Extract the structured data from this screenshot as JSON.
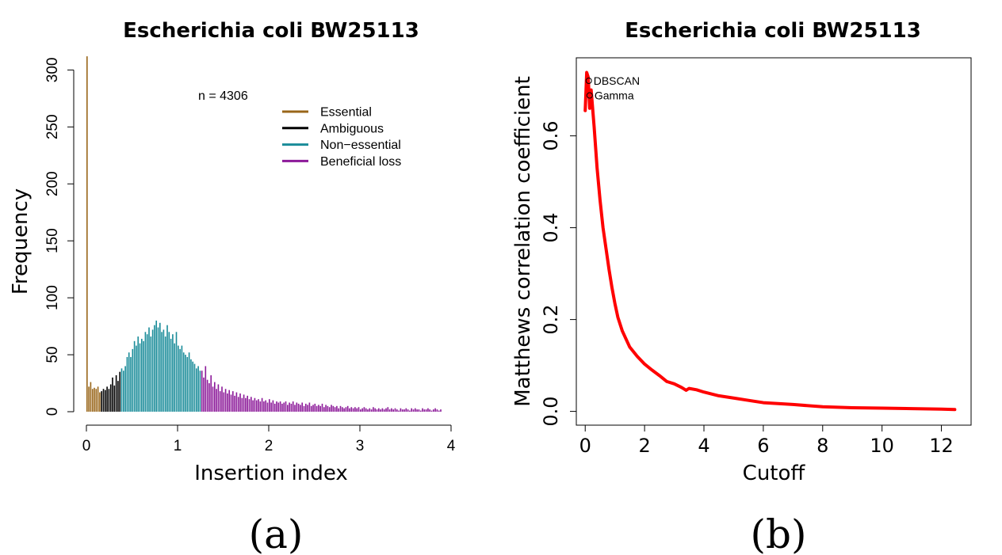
{
  "panels": {
    "a": {
      "label": "(a)",
      "chart_data": {
        "type": "bar",
        "title": "Escherichia coli BW25113",
        "xlabel": "Insertion index",
        "ylabel": "Frequency",
        "xlim": [
          0,
          4.2
        ],
        "ylim": [
          0,
          310
        ],
        "xticks": [
          "0",
          "1",
          "2",
          "3",
          "4"
        ],
        "yticks": [
          "0",
          "50",
          "100",
          "150",
          "200",
          "250",
          "300"
        ],
        "annotation": "n = 4306",
        "bin_width": 0.02,
        "legend": [
          {
            "name": "Essential",
            "color": "#99661a"
          },
          {
            "name": "Ambiguous",
            "color": "#000000"
          },
          {
            "name": "Non−essential",
            "color": "#1a8c99"
          },
          {
            "name": "Beneficial loss",
            "color": "#8c1a99"
          }
        ],
        "series": [
          {
            "name": "Essential",
            "color": "#99661a",
            "start": 0.0,
            "values": [
              312,
              22,
              26,
              20,
              21,
              20,
              22,
              17
            ]
          },
          {
            "name": "Ambiguous",
            "color": "#000000",
            "start": 0.16,
            "values": [
              18,
              20,
              19,
              22,
              20,
              24,
              30,
              23,
              32,
              27,
              35
            ]
          },
          {
            "name": "Non−essential",
            "color": "#1a8c99",
            "start": 0.38,
            "values": [
              38,
              36,
              40,
              48,
              52,
              48,
              55,
              62,
              58,
              66,
              60,
              64,
              62,
              70,
              68,
              74,
              66,
              72,
              76,
              80,
              74,
              78,
              70,
              72,
              66,
              76,
              70,
              64,
              68,
              60,
              70,
              58,
              55,
              58,
              52,
              50,
              48,
              52,
              46,
              44,
              42,
              38,
              40,
              36
            ]
          },
          {
            "name": "Beneficial loss",
            "color": "#8c1a99",
            "start": 1.26,
            "values": [
              36,
              30,
              40,
              28,
              25,
              32,
              22,
              26,
              20,
              24,
              18,
              22,
              17,
              20,
              16,
              19,
              15,
              18,
              14,
              17,
              13,
              16,
              12,
              15,
              12,
              14,
              11,
              13,
              10,
              12,
              10,
              11,
              9,
              12,
              9,
              10,
              8,
              11,
              8,
              10,
              7,
              9,
              8,
              9,
              7,
              8,
              9,
              6,
              8,
              7,
              9,
              6,
              8,
              7,
              6,
              8,
              5,
              7,
              6,
              8,
              5,
              6,
              7,
              5,
              6,
              5,
              7,
              4,
              6,
              5,
              4,
              6,
              5,
              4,
              5,
              3,
              5,
              4,
              3,
              4,
              5,
              3,
              4,
              3,
              4,
              3,
              4,
              2,
              3,
              4,
              3,
              2,
              3,
              2,
              4,
              3,
              2,
              3,
              2,
              3,
              2,
              3,
              4,
              2,
              3,
              2,
              3,
              2,
              1,
              3,
              2,
              2,
              3,
              2,
              1,
              3,
              2,
              3,
              2,
              2,
              1,
              3,
              2,
              2,
              3,
              2,
              1,
              2,
              3,
              2,
              1,
              2
            ]
          }
        ]
      }
    },
    "b": {
      "label": "(b)",
      "chart_data": {
        "type": "line",
        "title": "Escherichia coli BW25113",
        "xlabel": "Cutoff",
        "ylabel": "Matthews correlation coefficient",
        "xlim": [
          -0.3,
          13.0
        ],
        "ylim": [
          -0.03,
          0.77
        ],
        "xticks": [
          "0",
          "2",
          "4",
          "6",
          "8",
          "10",
          "12"
        ],
        "yticks": [
          "0.0",
          "0.2",
          "0.4",
          "0.6"
        ],
        "line_color": "#ff0000",
        "x": [
          0.0,
          0.05,
          0.1,
          0.15,
          0.2,
          0.3,
          0.4,
          0.5,
          0.6,
          0.7,
          0.8,
          0.9,
          1.0,
          1.1,
          1.25,
          1.5,
          1.75,
          2.0,
          2.25,
          2.5,
          2.75,
          3.0,
          3.25,
          3.4,
          3.5,
          3.75,
          4.0,
          4.5,
          5.0,
          5.5,
          6.0,
          7.0,
          8.0,
          9.0,
          10.0,
          11.0,
          12.0,
          12.45
        ],
        "y": [
          0.655,
          0.738,
          0.728,
          0.66,
          0.7,
          0.62,
          0.53,
          0.46,
          0.4,
          0.355,
          0.31,
          0.27,
          0.235,
          0.205,
          0.175,
          0.14,
          0.12,
          0.103,
          0.09,
          0.078,
          0.065,
          0.06,
          0.052,
          0.046,
          0.05,
          0.047,
          0.042,
          0.034,
          0.029,
          0.024,
          0.019,
          0.015,
          0.01,
          0.008,
          0.007,
          0.006,
          0.005,
          0.004
        ],
        "points": [
          {
            "label": "DBSCAN",
            "x": 0.12,
            "y": 0.72
          },
          {
            "label": "Gamma",
            "x": 0.15,
            "y": 0.688
          }
        ]
      }
    }
  }
}
